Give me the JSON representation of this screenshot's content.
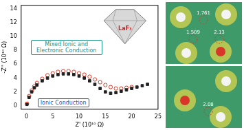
{
  "chart_data": {
    "type": "scatter",
    "x_label": "Z' (10¹⁰ Ω)",
    "y_label": "-Z'' (10¹⁰ Ω)",
    "xlim": [
      -1,
      25
    ],
    "xticks": [
      0,
      5,
      10,
      15,
      20,
      25
    ],
    "ylim": [
      -0.5,
      14.5
    ],
    "yticks": [
      0,
      2,
      4,
      6,
      8,
      10,
      12,
      14
    ],
    "grid": false,
    "series": [
      {
        "color": "#222222",
        "marker": "square",
        "line_style": "none",
        "x": [
          0.1,
          0.5,
          1,
          1.5,
          2,
          3,
          4,
          5,
          6,
          7,
          8,
          9,
          10,
          11,
          12,
          13,
          14,
          15,
          16,
          17,
          18,
          19,
          20,
          21,
          22,
          23
        ],
        "values": [
          0.2,
          1.2,
          2.0,
          2.6,
          3.0,
          3.6,
          4.0,
          4.3,
          4.5,
          4.6,
          4.6,
          4.5,
          4.3,
          4.0,
          3.6,
          3.1,
          2.5,
          2.0,
          1.8,
          1.9,
          2.1,
          2.3,
          2.5,
          2.7,
          2.9,
          3.1
        ]
      },
      {
        "color": "#e0321e",
        "marker": "circle",
        "line_style": "none",
        "x": [
          0.1,
          0.5,
          1,
          1.5,
          2,
          3,
          4,
          5,
          6,
          7,
          8,
          9,
          10,
          11,
          12,
          13,
          14,
          15,
          16,
          17,
          18,
          19,
          20
        ],
        "values": [
          0.3,
          1.4,
          2.2,
          2.8,
          3.3,
          3.9,
          4.4,
          4.7,
          4.9,
          5.0,
          5.0,
          4.9,
          4.7,
          4.5,
          4.2,
          3.8,
          3.4,
          3.0,
          2.7,
          2.5,
          2.5,
          2.6,
          2.7
        ]
      }
    ],
    "annotations": [
      {
        "text": "Mixed Ionic and Electronic Conduction",
        "color": "#1a8f86"
      },
      {
        "text": "Ionic Conduction",
        "color": "#2255c4"
      },
      {
        "text": "LaF₃",
        "color": "#cc2222"
      }
    ]
  },
  "panels": [
    {
      "labels": [
        "1.761",
        "1.509",
        "2.13"
      ]
    },
    {
      "labels": [
        "2.08"
      ]
    }
  ]
}
